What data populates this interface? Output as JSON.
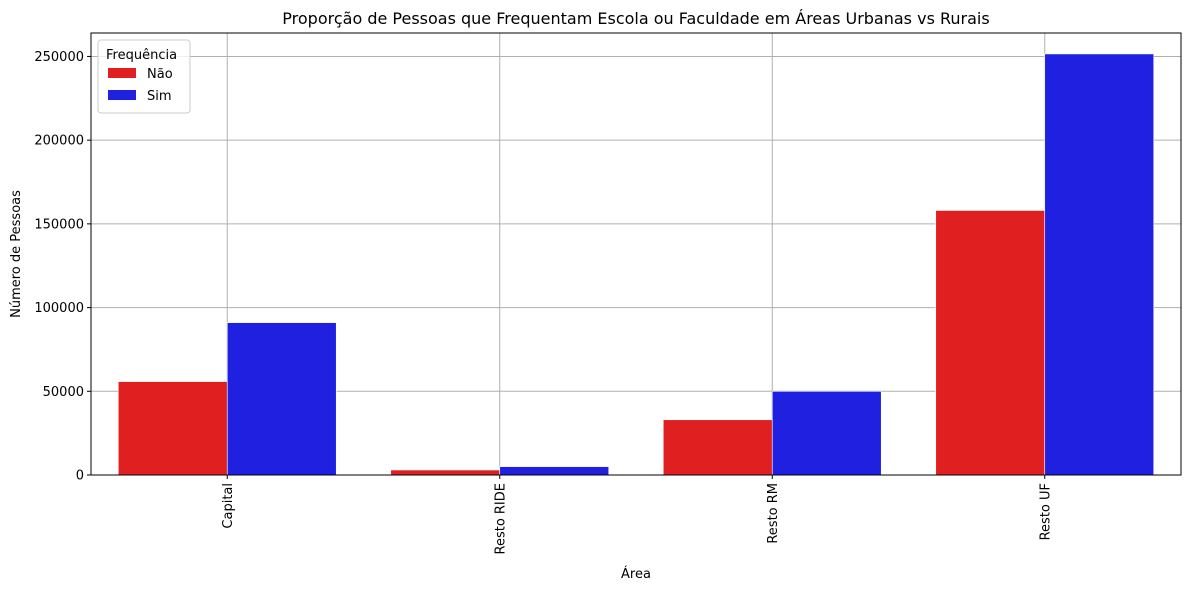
{
  "chart_data": {
    "type": "bar",
    "title": "Proporção de Pessoas que Frequentam Escola ou Faculdade em Áreas Urbanas vs Rurais",
    "xlabel": "Área",
    "ylabel": "Número de Pessoas",
    "categories": [
      "Capital",
      "Resto RIDE",
      "Resto RM",
      "Resto UF"
    ],
    "series": [
      {
        "name": "Não",
        "color": "#e02020",
        "values": [
          55800,
          3000,
          33000,
          158000
        ]
      },
      {
        "name": "Sim",
        "color": "#2020e0",
        "values": [
          91000,
          5000,
          50000,
          251500
        ]
      }
    ],
    "ylim": [
      0,
      264000
    ],
    "yticks": [
      0,
      50000,
      100000,
      150000,
      200000,
      250000
    ],
    "ytick_labels": [
      "0",
      "50000",
      "100000",
      "150000",
      "200000",
      "250000"
    ],
    "grid": true,
    "x_tick_rotation": "vertical",
    "legend": {
      "title": "Frequência",
      "placement": "top-left"
    }
  }
}
